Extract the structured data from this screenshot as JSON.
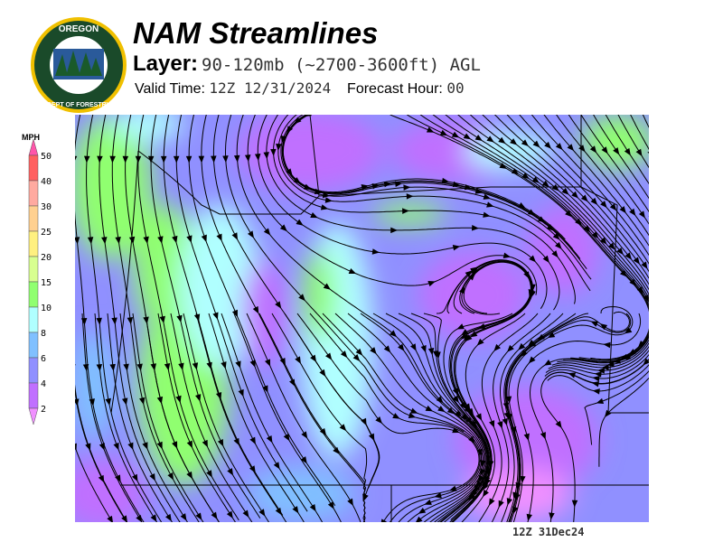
{
  "logo": {
    "text_top": "OREGON",
    "text_bottom": "DEPARTMENT OF FORESTRY"
  },
  "header": {
    "title": "NAM Streamlines",
    "layer_label": "Layer:",
    "layer_value": "90-120mb (~2700-3600ft) AGL",
    "valid_label": "Valid Time:",
    "valid_value": "12Z 12/31/2024",
    "forecast_label": "Forecast Hour:",
    "forecast_value": "00"
  },
  "colorbar": {
    "unit": "MPH",
    "ticks": [
      "50",
      "40",
      "30",
      "25",
      "20",
      "15",
      "10",
      "8",
      "6",
      "4",
      "2"
    ],
    "colors": [
      "#ff55aa",
      "#ff6060",
      "#ffaaa0",
      "#ffd090",
      "#fff080",
      "#d8ff90",
      "#90ff70",
      "#b0ffff",
      "#80c0ff",
      "#9090ff",
      "#c070ff",
      "#f090ff"
    ]
  },
  "footer": {
    "stamp": "12Z 31Dec24"
  }
}
